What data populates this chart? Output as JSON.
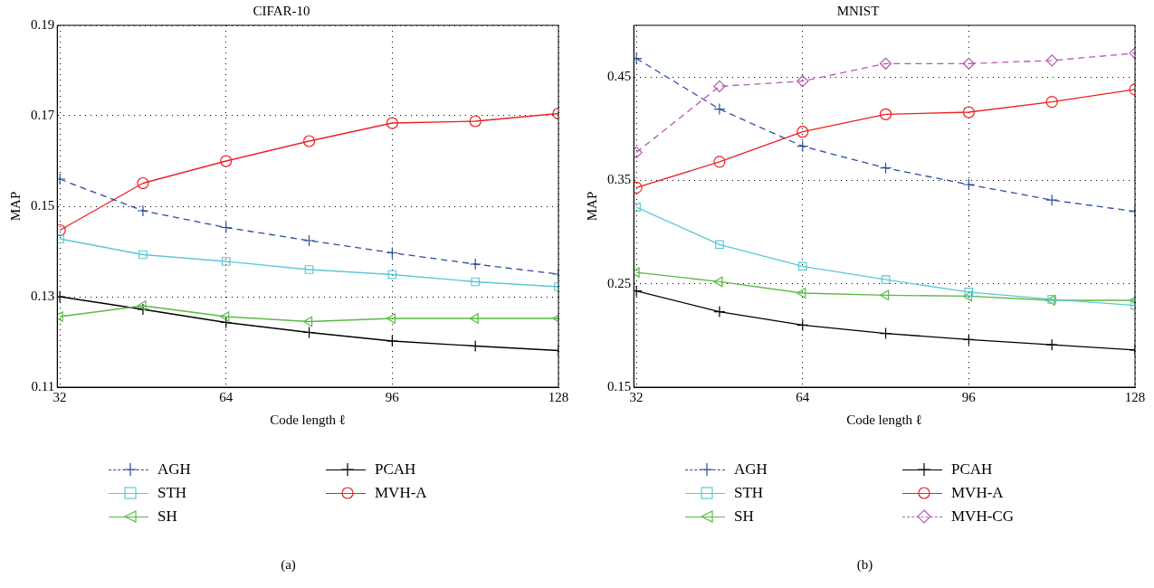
{
  "chart_data": [
    {
      "type": "line",
      "title": "CIFAR-10",
      "xlabel": "Code length ℓ",
      "ylabel": "MAP",
      "x": [
        32,
        48,
        64,
        80,
        96,
        112,
        128
      ],
      "xlim": [
        31.5,
        128
      ],
      "xticks": [
        32,
        64,
        96,
        128
      ],
      "ylim": [
        0.11,
        0.19
      ],
      "yticks": [
        0.11,
        0.13,
        0.15,
        0.17,
        0.19
      ],
      "grid": true,
      "legend": "bottom",
      "annotations": [
        "(a)"
      ],
      "series": [
        {
          "name": "AGH",
          "color": "#2e4a9e",
          "marker": "cross",
          "line_style": "dashed",
          "values": [
            0.156,
            0.149,
            0.1453,
            0.1424,
            0.1397,
            0.1372,
            0.135
          ]
        },
        {
          "name": "STH",
          "color": "#5bc8d6",
          "marker": "square",
          "line_style": "solid",
          "values": [
            0.1428,
            0.1393,
            0.1378,
            0.136,
            0.1349,
            0.1333,
            0.1322
          ]
        },
        {
          "name": "SH",
          "color": "#5ab946",
          "marker": "triangle",
          "line_style": "solid",
          "values": [
            0.1256,
            0.128,
            0.1256,
            0.1245,
            0.1252,
            0.1252,
            0.1252
          ]
        },
        {
          "name": "PCAH",
          "color": "#000000",
          "marker": "cross",
          "line_style": "solid",
          "values": [
            0.13,
            0.1272,
            0.1243,
            0.1221,
            0.1202,
            0.1191,
            0.1181
          ]
        },
        {
          "name": "MVH-A",
          "color": "#ed2024",
          "marker": "circle",
          "line_style": "solid",
          "values": [
            0.1447,
            0.1551,
            0.16,
            0.1644,
            0.1684,
            0.1688,
            0.1705
          ]
        }
      ]
    },
    {
      "type": "line",
      "title": "MNIST",
      "xlabel": "Code length ℓ",
      "ylabel": "MAP",
      "x": [
        32,
        48,
        64,
        80,
        96,
        112,
        128
      ],
      "xlim": [
        31.5,
        128
      ],
      "xticks": [
        32,
        64,
        96,
        128
      ],
      "ylim": [
        0.15,
        0.5
      ],
      "yticks": [
        0.15,
        0.25,
        0.35,
        0.45
      ],
      "grid": true,
      "legend": "bottom",
      "annotations": [
        "(b)"
      ],
      "series": [
        {
          "name": "AGH",
          "color": "#2e4a9e",
          "marker": "cross",
          "line_style": "dashed",
          "values": [
            0.468,
            0.419,
            0.383,
            0.362,
            0.346,
            0.331,
            0.32
          ]
        },
        {
          "name": "STH",
          "color": "#5bc8d6",
          "marker": "square",
          "line_style": "solid",
          "values": [
            0.324,
            0.288,
            0.267,
            0.254,
            0.242,
            0.235,
            0.229
          ]
        },
        {
          "name": "SH",
          "color": "#5ab946",
          "marker": "triangle",
          "line_style": "solid",
          "values": [
            0.261,
            0.252,
            0.241,
            0.239,
            0.238,
            0.234,
            0.234
          ]
        },
        {
          "name": "PCAH",
          "color": "#000000",
          "marker": "cross",
          "line_style": "solid",
          "values": [
            0.243,
            0.223,
            0.21,
            0.202,
            0.196,
            0.191,
            0.186
          ]
        },
        {
          "name": "MVH-A",
          "color": "#ed2024",
          "marker": "circle",
          "line_style": "solid",
          "values": [
            0.343,
            0.368,
            0.397,
            0.414,
            0.416,
            0.426,
            0.438
          ]
        },
        {
          "name": "MVH-CG",
          "color": "#b557b5",
          "marker": "diamond",
          "line_style": "dashed",
          "values": [
            0.377,
            0.441,
            0.446,
            0.463,
            0.463,
            0.466,
            0.473
          ]
        }
      ]
    }
  ]
}
